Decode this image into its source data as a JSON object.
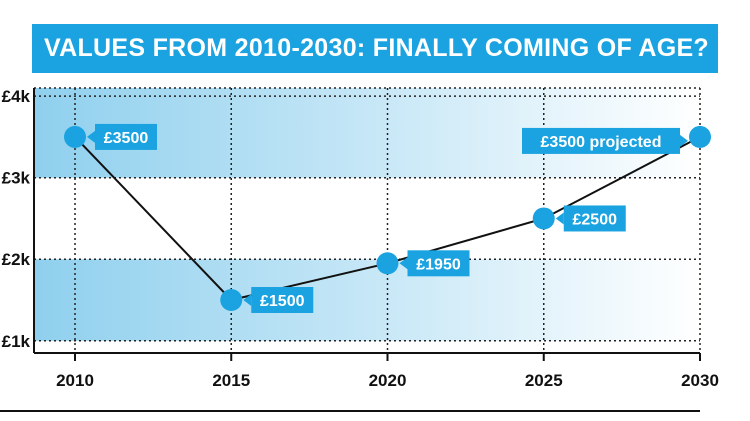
{
  "title": "VALUES FROM 2010-2030: FINALLY COMING OF AGE?",
  "colors": {
    "accent": "#1aa3e0",
    "band_dark": "#8fd0ee",
    "band_light": "#ffffff",
    "line": "#111111"
  },
  "chart_data": {
    "type": "line",
    "title": "VALUES FROM 2010-2030: FINALLY COMING OF AGE?",
    "x": [
      2010,
      2015,
      2020,
      2025,
      2030
    ],
    "values": [
      3500,
      1500,
      1950,
      2500,
      3500
    ],
    "point_labels": [
      "£3500",
      "£1500",
      "£1950",
      "£2500",
      "£3500 projected"
    ],
    "x_ticks": [
      "2010",
      "2015",
      "2020",
      "2025",
      "2030"
    ],
    "y_ticks": [
      {
        "value": 1000,
        "label": "£1k"
      },
      {
        "value": 2000,
        "label": "£2k"
      },
      {
        "value": 3000,
        "label": "£3k"
      },
      {
        "value": 4000,
        "label": "£4k"
      }
    ],
    "xlim": [
      2010,
      2030
    ],
    "ylim": [
      850,
      4100
    ],
    "grid": true
  }
}
